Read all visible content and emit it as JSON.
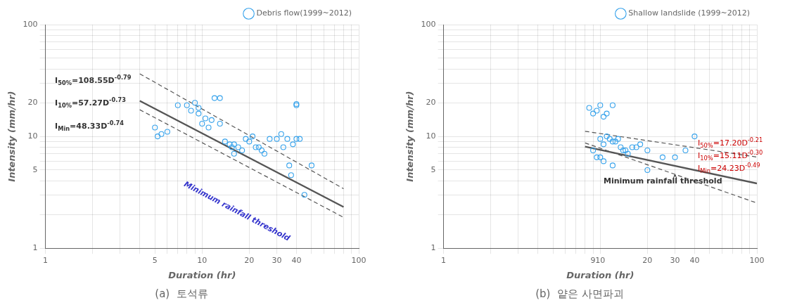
{
  "chart_data": [
    {
      "type": "scatter",
      "title": "(a)  토석류",
      "x_label": "Duration (hr)",
      "y_label": "Intensity (mm/hr)",
      "log": true,
      "grid": true,
      "legend": "upper right",
      "xlim": [
        1,
        100
      ],
      "ylim": [
        1,
        100
      ],
      "xticks": [
        1,
        {
          "value": 2,
          "label": ""
        },
        {
          "value": 3,
          "label": ""
        },
        {
          "value": 4,
          "label": ""
        },
        5,
        {
          "value": 6,
          "label": ""
        },
        {
          "value": 7,
          "label": ""
        },
        {
          "value": 8,
          "label": ""
        },
        {
          "value": 9,
          "label": ""
        },
        10,
        20,
        30,
        40,
        {
          "value": 50,
          "label": ""
        },
        {
          "value": 60,
          "label": ""
        },
        {
          "value": 70,
          "label": ""
        },
        {
          "value": 80,
          "label": ""
        },
        {
          "value": 90,
          "label": ""
        },
        100
      ],
      "yticks": [
        1,
        {
          "value": 2,
          "label": ""
        },
        {
          "value": 3,
          "label": ""
        },
        {
          "value": 4,
          "label": ""
        },
        5,
        {
          "value": 6,
          "label": ""
        },
        {
          "value": 7,
          "label": ""
        },
        {
          "value": 8,
          "label": ""
        },
        {
          "value": 9,
          "label": ""
        },
        10,
        20,
        {
          "value": 30,
          "label": ""
        },
        {
          "value": 40,
          "label": ""
        },
        {
          "value": 50,
          "label": ""
        },
        {
          "value": 60,
          "label": ""
        },
        {
          "value": 70,
          "label": ""
        },
        {
          "value": 80,
          "label": ""
        },
        {
          "value": 90,
          "label": ""
        },
        100
      ],
      "series": [
        {
          "name": "Debris flow(1999~2012)",
          "type": "scatter",
          "marker": "circle",
          "x": [
            5.0,
            5.2,
            5.5,
            6.0,
            7.0,
            8.0,
            8.5,
            9.0,
            9.5,
            9.5,
            10.0,
            10.5,
            11.0,
            11.5,
            12.0,
            13.0,
            13.0,
            14.0,
            15.0,
            15.5,
            16.0,
            16.0,
            17.0,
            18.0,
            19.0,
            20.0,
            21.0,
            22.0,
            23.0,
            24.0,
            25.0,
            27.0,
            30.0,
            32.0,
            33.0,
            35.0,
            36.0,
            37.0,
            38.0,
            40.0,
            40.0,
            40.0,
            42.0,
            45.0,
            50.0
          ],
          "values": [
            12.0,
            10.0,
            10.5,
            11.0,
            19.0,
            19.0,
            17.0,
            20.0,
            18.0,
            16.0,
            13.0,
            14.5,
            12.0,
            14.0,
            22.0,
            22.0,
            13.0,
            9.0,
            8.5,
            8.0,
            8.5,
            7.0,
            8.0,
            7.5,
            9.5,
            9.0,
            10.0,
            8.0,
            8.0,
            7.5,
            7.0,
            9.5,
            9.5,
            10.5,
            8.0,
            9.5,
            5.5,
            4.5,
            8.5,
            9.5,
            19.0,
            19.5,
            9.5,
            3.0,
            5.5
          ]
        },
        {
          "type": "line",
          "line_style": "dashed",
          "x": [
            4.0,
            80.0
          ],
          "values": [
            36.308,
            3.4055
          ]
        },
        {
          "type": "line",
          "line_style": "solid",
          "x": [
            4.0,
            80.0
          ],
          "values": [
            20.817,
            2.3371
          ]
        },
        {
          "type": "line",
          "line_style": "dashed",
          "x": [
            4.0,
            80.0
          ],
          "values": [
            17.326,
            1.8877
          ]
        }
      ],
      "annotations": [
        {
          "x": 1.15,
          "y": 32.0,
          "text": [
            {
              "text": "I"
            },
            {
              "text": "50%",
              "sub": true
            },
            {
              "text": "=108.55D"
            },
            {
              "text": "-0.79",
              "sup": true
            }
          ]
        },
        {
          "x": 1.15,
          "y": 20.0,
          "text": [
            {
              "text": "I"
            },
            {
              "text": "10%",
              "sub": true
            },
            {
              "text": "=57.27D"
            },
            {
              "text": "-0.73",
              "sup": true
            }
          ]
        },
        {
          "x": 1.15,
          "y": 12.5,
          "text": [
            {
              "text": "I"
            },
            {
              "text": "Min",
              "sub": true
            },
            {
              "text": "=48.33D"
            },
            {
              "text": "-0.74",
              "sup": true
            }
          ]
        },
        {
          "x": 7.5,
          "y": 3.5,
          "text": "Minimum rainfall threshold",
          "color": "#3333cc",
          "along_line": true
        }
      ]
    },
    {
      "type": "scatter",
      "title": "(b)  얕은 사면파괴",
      "x_label": "Duration (hr)",
      "y_label": "Intensity (mm/hr)",
      "log": true,
      "grid": true,
      "legend": "upper right",
      "xlim": [
        1,
        100
      ],
      "ylim": [
        1,
        100
      ],
      "xticks": [
        1,
        {
          "value": 2,
          "label": ""
        },
        {
          "value": 3,
          "label": ""
        },
        {
          "value": 4,
          "label": ""
        },
        {
          "value": 5,
          "label": ""
        },
        {
          "value": 6,
          "label": ""
        },
        {
          "value": 7,
          "label": ""
        },
        {
          "value": 8,
          "label": ""
        },
        9,
        10,
        20,
        30,
        40,
        {
          "value": 50,
          "label": ""
        },
        {
          "value": 60,
          "label": ""
        },
        {
          "value": 70,
          "label": ""
        },
        {
          "value": 80,
          "label": ""
        },
        {
          "value": 90,
          "label": ""
        },
        100
      ],
      "yticks": [
        1,
        {
          "value": 2,
          "label": ""
        },
        {
          "value": 3,
          "label": ""
        },
        {
          "value": 4,
          "label": ""
        },
        5,
        {
          "value": 6,
          "label": ""
        },
        {
          "value": 7,
          "label": ""
        },
        {
          "value": 8,
          "label": ""
        },
        {
          "value": 9,
          "label": ""
        },
        10,
        20,
        {
          "value": 30,
          "label": ""
        },
        {
          "value": 40,
          "label": ""
        },
        {
          "value": 50,
          "label": ""
        },
        {
          "value": 60,
          "label": ""
        },
        {
          "value": 70,
          "label": ""
        },
        {
          "value": 80,
          "label": ""
        },
        {
          "value": 90,
          "label": ""
        },
        100
      ],
      "series": [
        {
          "name": "Shallow landslide (1999~2012)",
          "type": "scatter",
          "marker": "circle",
          "x": [
            8.5,
            9.0,
            9.5,
            10.0,
            10.5,
            11.0,
            12.0,
            10.0,
            10.5,
            11.0,
            11.5,
            12.0,
            12.5,
            13.0,
            13.5,
            14.0,
            14.5,
            15.0,
            16.0,
            17.0,
            18.0,
            20.0,
            25.0,
            30.0,
            35.0,
            9.0,
            9.5,
            10.0,
            10.5,
            12.0,
            20.0,
            40.0
          ],
          "values": [
            18.0,
            16.0,
            17.0,
            19.0,
            15.0,
            16.0,
            19.0,
            9.5,
            8.5,
            10.0,
            9.5,
            9.0,
            9.0,
            9.5,
            8.0,
            7.5,
            7.5,
            7.0,
            8.0,
            8.0,
            8.5,
            7.5,
            6.5,
            6.5,
            7.5,
            7.5,
            6.5,
            6.5,
            6.0,
            5.5,
            5.0,
            10.0
          ]
        },
        {
          "type": "line",
          "line_style": "dashed",
          "x": [
            8.0,
            100.0
          ],
          "values": [
            11.114,
            6.5393
          ]
        },
        {
          "type": "line",
          "line_style": "solid",
          "x": [
            8.0,
            100.0
          ],
          "values": [
            8.0973,
            3.7955
          ]
        },
        {
          "type": "line",
          "line_style": "dashed",
          "x": [
            8.0,
            100.0
          ],
          "values": [
            8.7466,
            2.5372
          ]
        }
      ],
      "annotations": [
        {
          "x": 42.0,
          "y": 8.8,
          "color": "#cc0000",
          "text": [
            {
              "text": "I"
            },
            {
              "text": "50%",
              "sub": true
            },
            {
              "text": "=17.20D"
            },
            {
              "text": "-0.21",
              "sup": true
            }
          ]
        },
        {
          "x": 42.0,
          "y": 6.8,
          "color": "#cc0000",
          "text": [
            {
              "text": "I"
            },
            {
              "text": "10%",
              "sub": true
            },
            {
              "text": "=15.11D"
            },
            {
              "text": "-0.30",
              "sup": true
            }
          ]
        },
        {
          "x": 42.0,
          "y": 5.2,
          "color": "#cc0000",
          "text": [
            {
              "text": "I"
            },
            {
              "text": "Min",
              "sub": true
            },
            {
              "text": "=24.23D"
            },
            {
              "text": "-0.49",
              "sup": true
            }
          ]
        },
        {
          "x": 10.5,
          "y": 4.0,
          "text": "Minimum rainfall threshold",
          "arrow_to": [
            30.0,
            4.5768
          ]
        }
      ]
    }
  ]
}
